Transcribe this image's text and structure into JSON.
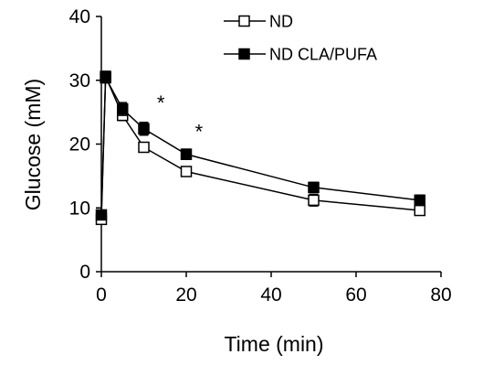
{
  "chart_data": {
    "type": "line",
    "title": "",
    "xlabel": "Time (min)",
    "ylabel": "Glucose (mM)",
    "xlim": [
      0,
      80
    ],
    "ylim": [
      0,
      40
    ],
    "x_ticks": [
      "0",
      "20",
      "40",
      "60",
      "80"
    ],
    "y_ticks": [
      "0",
      "10",
      "20",
      "30",
      "40"
    ],
    "grid": false,
    "legend_position": "top-right",
    "x": [
      0,
      1,
      5,
      10,
      20,
      50,
      75
    ],
    "series": [
      {
        "name": "ND",
        "marker": "open-square",
        "color": "#000000",
        "values": [
          8.2,
          30.6,
          24.5,
          19.5,
          15.7,
          11.2,
          9.6
        ],
        "errors": [
          0.6,
          0.8,
          0.8,
          0.6,
          0.5,
          0.9,
          0.7
        ]
      },
      {
        "name": "ND CLA/PUFA",
        "marker": "filled-square",
        "color": "#000000",
        "values": [
          8.9,
          30.4,
          25.5,
          22.4,
          18.4,
          13.2,
          11.2
        ],
        "errors": [
          0.7,
          0.8,
          1.0,
          1.0,
          0.8,
          0.8,
          0.8
        ]
      }
    ],
    "annotations": [
      {
        "text": "*",
        "x": 14,
        "y": 26.5
      },
      {
        "text": "*",
        "x": 23,
        "y": 22
      }
    ]
  }
}
